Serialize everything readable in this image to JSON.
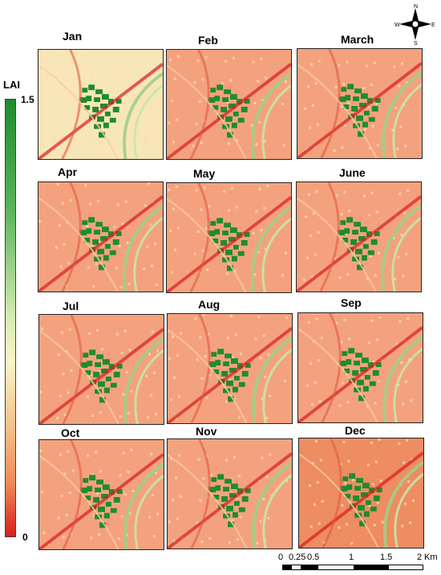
{
  "legend": {
    "title": "LAI",
    "max_label": "1.5",
    "min_label": "0"
  },
  "months": [
    "Jan",
    "Feb",
    "March",
    "Apr",
    "May",
    "June",
    "Jul",
    "Aug",
    "Sep",
    "Oct",
    "Nov",
    "Dec"
  ],
  "scalebar": {
    "ticks": [
      "0",
      "0.25",
      "0.5",
      "1",
      "1.5",
      "2"
    ],
    "unit": "Km"
  },
  "compass": {
    "n": "N",
    "s": "S",
    "e": "E",
    "w": "W"
  },
  "colors": {
    "high_lai": "#1e8c2e",
    "low_lai": "#d71e1e",
    "jan_background": "#f8e6b8",
    "background": "#f4a27e"
  }
}
